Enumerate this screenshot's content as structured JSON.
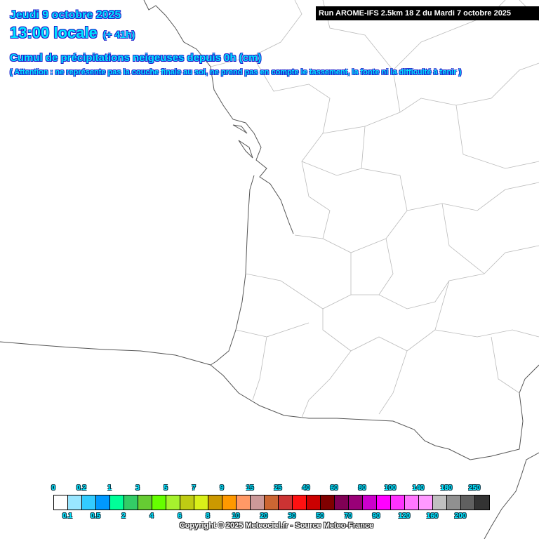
{
  "header": {
    "date": "Jeudi 9 octobre 2025",
    "time": "13:00 locale",
    "lead": "(+ 41h)",
    "title": "Cumul de précipitations neigeuses depuis 0h (cm)",
    "warning": "( Attention : ne représente pas la couche finale au sol, ne prend pas en compte le tassement, la fonte ni la difficulté à tenir )",
    "run": "Run AROME-IFS 2.5km 18 Z du Mardi 7 octobre 2025"
  },
  "legend": {
    "top_labels": [
      "0",
      "0.2",
      "1",
      "3",
      "5",
      "7",
      "9",
      "15",
      "25",
      "40",
      "60",
      "80",
      "100",
      "140",
      "180",
      "250"
    ],
    "bottom_labels": [
      "0.1",
      "0.5",
      "2",
      "4",
      "6",
      "8",
      "10",
      "20",
      "30",
      "50",
      "70",
      "90",
      "120",
      "160",
      "200"
    ],
    "colors": [
      "#ffffff",
      "#99e6ff",
      "#33ccff",
      "#0099ff",
      "#00ff99",
      "#33cc66",
      "#66cc33",
      "#66ff00",
      "#a6f22e",
      "#bfcc13",
      "#d9f019",
      "#cc9900",
      "#ff9900",
      "#ff9966",
      "#cc9999",
      "#cc6633",
      "#cc3333",
      "#ff1111",
      "#cc0000",
      "#800000",
      "#800055",
      "#990077",
      "#cc00cc",
      "#ff00ff",
      "#ff33ff",
      "#ff77ff",
      "#ff99ff",
      "#c0c0c0",
      "#909090",
      "#606060",
      "#333333"
    ]
  },
  "copyright": "Copyright © 2025 Meteociel.fr - Source Meteo-France"
}
